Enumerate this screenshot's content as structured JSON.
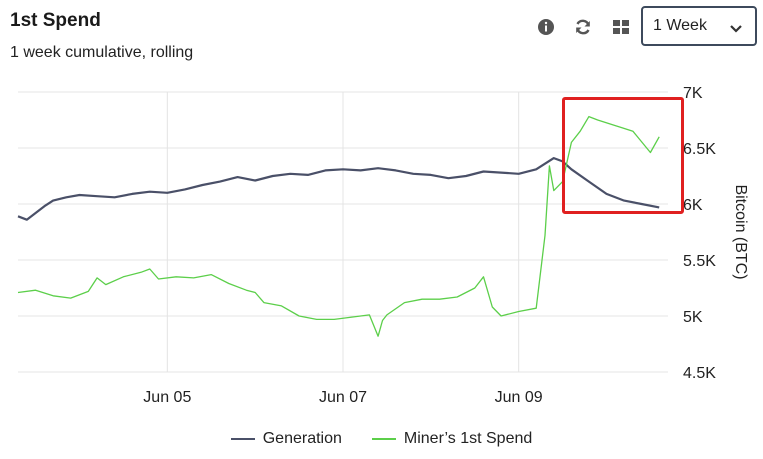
{
  "header": {
    "title": "1st Spend",
    "subtitle": "1 week cumulative, rolling"
  },
  "toolbar": {
    "info_icon": "info-icon",
    "refresh_icon": "refresh-icon",
    "grid_icon": "grid-icon",
    "range_selected": "1 Week"
  },
  "colors": {
    "generation": "#4a5068",
    "first_spend": "#5ccf4a",
    "highlight": "#e02020",
    "grid": "#e4e4e4"
  },
  "chart_data": {
    "type": "line",
    "ylabel": "Bitcoin (BTC)",
    "ylim": [
      4500,
      7000
    ],
    "yticks": [
      4500,
      5000,
      5500,
      6000,
      6500,
      7000
    ],
    "ytick_labels": [
      "4.5K",
      "5K",
      "5.5K",
      "6K",
      "6.5K",
      "7K"
    ],
    "xlim": [
      3.3,
      10.7
    ],
    "xticks": [
      5,
      7,
      9
    ],
    "xtick_labels": [
      "Jun 05",
      "Jun 07",
      "Jun 09"
    ],
    "legend": [
      "Generation",
      "Miner’s 1st Spend"
    ],
    "legend_position": "bottom",
    "grid": true,
    "series": [
      {
        "name": "Generation",
        "x": [
          3.3,
          3.4,
          3.5,
          3.6,
          3.7,
          3.85,
          4.0,
          4.2,
          4.4,
          4.6,
          4.8,
          5.0,
          5.2,
          5.4,
          5.6,
          5.8,
          6.0,
          6.2,
          6.4,
          6.6,
          6.8,
          7.0,
          7.2,
          7.4,
          7.6,
          7.8,
          8.0,
          8.2,
          8.4,
          8.6,
          8.8,
          9.0,
          9.2,
          9.3,
          9.4,
          9.5,
          9.6,
          9.8,
          10.0,
          10.2,
          10.4,
          10.6
        ],
        "values": [
          5890,
          5860,
          5920,
          5980,
          6030,
          6060,
          6080,
          6070,
          6060,
          6090,
          6110,
          6100,
          6130,
          6170,
          6200,
          6240,
          6210,
          6250,
          6270,
          6260,
          6300,
          6310,
          6300,
          6320,
          6300,
          6270,
          6260,
          6230,
          6250,
          6290,
          6280,
          6270,
          6310,
          6360,
          6410,
          6380,
          6310,
          6200,
          6090,
          6030,
          6000,
          5970
        ]
      },
      {
        "name": "Miner’s 1st Spend",
        "x": [
          3.3,
          3.5,
          3.7,
          3.9,
          4.1,
          4.2,
          4.3,
          4.5,
          4.7,
          4.8,
          4.9,
          5.1,
          5.3,
          5.5,
          5.7,
          5.9,
          6.0,
          6.1,
          6.3,
          6.5,
          6.7,
          6.9,
          7.1,
          7.3,
          7.4,
          7.45,
          7.5,
          7.7,
          7.9,
          8.1,
          8.3,
          8.5,
          8.6,
          8.7,
          8.8,
          9.0,
          9.2,
          9.3,
          9.35,
          9.4,
          9.5,
          9.6,
          9.7,
          9.8,
          9.9,
          10.1,
          10.3,
          10.5,
          10.6
        ],
        "values": [
          5210,
          5230,
          5180,
          5160,
          5220,
          5340,
          5280,
          5350,
          5390,
          5420,
          5330,
          5350,
          5340,
          5370,
          5290,
          5230,
          5210,
          5120,
          5090,
          5000,
          4970,
          4970,
          4990,
          5010,
          4820,
          4960,
          5010,
          5120,
          5150,
          5150,
          5170,
          5250,
          5350,
          5080,
          5000,
          5040,
          5070,
          5720,
          6340,
          6120,
          6200,
          6550,
          6650,
          6780,
          6750,
          6700,
          6650,
          6460,
          6600
        ]
      }
    ]
  }
}
